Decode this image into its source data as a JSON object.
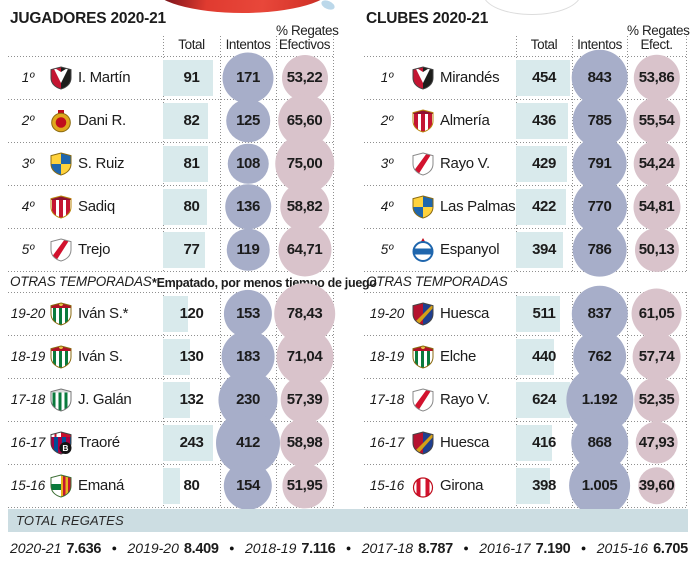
{
  "chart_data": [
    {
      "type": "table",
      "title": "JUGADORES 2020-21",
      "col_headers": {
        "total": "Total",
        "intentos": "Intentos",
        "pct1": "% Regates",
        "pct2": "Efectivos"
      },
      "season_rows": [
        {
          "rank": "1º",
          "crest": "mirandes",
          "name": "I. Martín",
          "total": 91,
          "intentos": "171",
          "pct": "53,22"
        },
        {
          "rank": "2º",
          "crest": "mallorca",
          "name": "Dani R.",
          "total": 82,
          "intentos": "125",
          "pct": "65,60"
        },
        {
          "rank": "3º",
          "crest": "las-palmas",
          "name": "S. Ruiz",
          "total": 81,
          "intentos": "108",
          "pct": "75,00"
        },
        {
          "rank": "4º",
          "crest": "almeria",
          "name": "Sadiq",
          "total": 80,
          "intentos": "136",
          "pct": "58,82"
        },
        {
          "rank": "5º",
          "crest": "rayo",
          "name": "Trejo",
          "total": 77,
          "intentos": "119",
          "pct": "64,71"
        }
      ],
      "other_seasons_label": "OTRAS TEMPORADAS",
      "footnote": "*Empatado, por menos tiempo de juego",
      "other_rows": [
        {
          "rank": "19-20",
          "crest": "elche",
          "name": "Iván S.*",
          "total": 120,
          "intentos": "153",
          "pct": "78,43"
        },
        {
          "rank": "18-19",
          "crest": "elche",
          "name": "Iván S.",
          "total": 130,
          "intentos": "183",
          "pct": "71,04"
        },
        {
          "rank": "17-18",
          "crest": "cordoba",
          "name": "J. Galán",
          "total": 132,
          "intentos": "230",
          "pct": "57,39"
        },
        {
          "rank": "16-17",
          "crest": "barcelona-b",
          "name": "Traoré",
          "total": 243,
          "intentos": "412",
          "pct": "58,98"
        },
        {
          "rank": "15-16",
          "crest": "castellon",
          "name": "Emaná",
          "total": 80,
          "intentos": "154",
          "pct": "51,95"
        }
      ]
    },
    {
      "type": "table",
      "title": "CLUBES 2020-21",
      "col_headers": {
        "total": "Total",
        "intentos": "Intentos",
        "pct1": "% Regates",
        "pct2": "Efect."
      },
      "season_rows": [
        {
          "rank": "1º",
          "crest": "mirandes",
          "name": "Mirandés",
          "total": 454,
          "intentos": "843",
          "pct": "53,86"
        },
        {
          "rank": "2º",
          "crest": "almeria",
          "name": "Almería",
          "total": 436,
          "intentos": "785",
          "pct": "55,54"
        },
        {
          "rank": "3º",
          "crest": "rayo",
          "name": "Rayo V.",
          "total": 429,
          "intentos": "791",
          "pct": "54,24"
        },
        {
          "rank": "4º",
          "crest": "las-palmas",
          "name": "Las Palmas",
          "total": 422,
          "intentos": "770",
          "pct": "54,81"
        },
        {
          "rank": "5º",
          "crest": "espanyol",
          "name": "Espanyol",
          "total": 394,
          "intentos": "786",
          "pct": "50,13"
        }
      ],
      "other_seasons_label": "OTRAS TEMPORADAS",
      "footnote": "",
      "other_rows": [
        {
          "rank": "19-20",
          "crest": "huesca",
          "name": "Huesca",
          "total": 511,
          "intentos": "837",
          "pct": "61,05"
        },
        {
          "rank": "18-19",
          "crest": "elche",
          "name": "Elche",
          "total": 440,
          "intentos": "762",
          "pct": "57,74"
        },
        {
          "rank": "17-18",
          "crest": "rayo",
          "name": "Rayo V.",
          "total": 624,
          "intentos": "1.192",
          "pct": "52,35"
        },
        {
          "rank": "16-17",
          "crest": "huesca",
          "name": "Huesca",
          "total": 416,
          "intentos": "868",
          "pct": "47,93"
        },
        {
          "rank": "15-16",
          "crest": "girona",
          "name": "Girona",
          "total": 398,
          "intentos": "1.005",
          "pct": "39,60"
        }
      ]
    },
    {
      "type": "totals",
      "label": "TOTAL REGATES",
      "separator": "●",
      "items": [
        {
          "season": "2020-21",
          "value": "7.636"
        },
        {
          "season": "2019-20",
          "value": "8.409"
        },
        {
          "season": "2018-19",
          "value": "7.116"
        },
        {
          "season": "2017-18",
          "value": "8.787"
        },
        {
          "season": "2016-17",
          "value": "7.190"
        },
        {
          "season": "2015-16",
          "value": "6.705"
        }
      ]
    }
  ],
  "colors": {
    "total_bar": "#d9eaec",
    "intentos_circle": "#a7aec9",
    "pct_circle": "#d9c3cb",
    "banner_bg": "#ccdde2",
    "dot_line": "#8f8f8f",
    "accent_red": "#d93a2b"
  }
}
